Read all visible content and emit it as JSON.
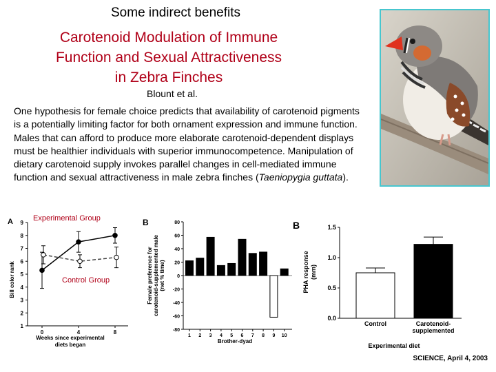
{
  "slide": {
    "heading": "Some indirect benefits",
    "title_lines": [
      "Carotenoid Modulation of Immune",
      "Function and Sexual Attractiveness",
      "in Zebra Finches"
    ],
    "authors": "Blount et al.",
    "abstract_prefix": "One hypothesis for female choice predicts that availability of carotenoid pigments is a potentially limiting factor for both ornament expression and immune function. Males that can afford to produce more elaborate carotenoid-dependent displays must be healthier individuals with superior immunocompetence. Manipulation of dietary carotenoid supply invokes parallel changes in cell-mediated immune function and sexual attractiveness in male zebra finches (",
    "abstract_species": "Taeniopygia guttata",
    "abstract_suffix": ").",
    "citation": "SCIENCE, April 4, 2003",
    "label_experimental": "Experimental Group",
    "label_control": "Control Group",
    "colors": {
      "title": "#b00018",
      "photo_border": "#46c6cf"
    }
  },
  "chart_data": [
    {
      "type": "line",
      "panel": "A",
      "xlabel": "Weeks since experimental diets began",
      "ylabel": "Bill color rank",
      "x": [
        0,
        4,
        8
      ],
      "x_ticks": [
        0,
        4,
        8
      ],
      "y_ticks": [
        1,
        2,
        3,
        4,
        5,
        6,
        7,
        8,
        9
      ],
      "ylim": [
        1,
        9
      ],
      "series": [
        {
          "name": "Experimental Group",
          "values": [
            5.3,
            7.5,
            8.0
          ],
          "errors": [
            1.4,
            0.8,
            0.6
          ],
          "marker": "filled",
          "line": "solid"
        },
        {
          "name": "Control Group",
          "values": [
            6.5,
            6.0,
            6.3
          ],
          "errors": [
            0.7,
            0.5,
            0.8
          ],
          "marker": "open",
          "line": "dashed"
        }
      ]
    },
    {
      "type": "bar",
      "panel": "B",
      "xlabel": "Brother-dyad",
      "ylabel": "Female preference for carotenoid-supplemented male (net % time)",
      "categories": [
        "1",
        "2",
        "3",
        "4",
        "5",
        "6",
        "7",
        "8",
        "9",
        "10"
      ],
      "values": [
        22,
        26,
        57,
        15,
        18,
        54,
        33,
        35,
        -62,
        10
      ],
      "y_ticks": [
        -80,
        -60,
        -40,
        -20,
        0,
        20,
        40,
        60,
        80
      ],
      "ylim": [
        -80,
        80
      ]
    },
    {
      "type": "bar",
      "panel": "B",
      "xlabel": "Experimental diet",
      "ylabel": "PHA response (mm)",
      "categories": [
        "Control",
        "Carotenoid-supplemented"
      ],
      "values": [
        0.75,
        1.22
      ],
      "errors": [
        0.08,
        0.12
      ],
      "y_ticks": [
        "0.0",
        "0.5",
        "1.0",
        "1.5"
      ],
      "ylim": [
        0,
        1.5
      ]
    }
  ]
}
